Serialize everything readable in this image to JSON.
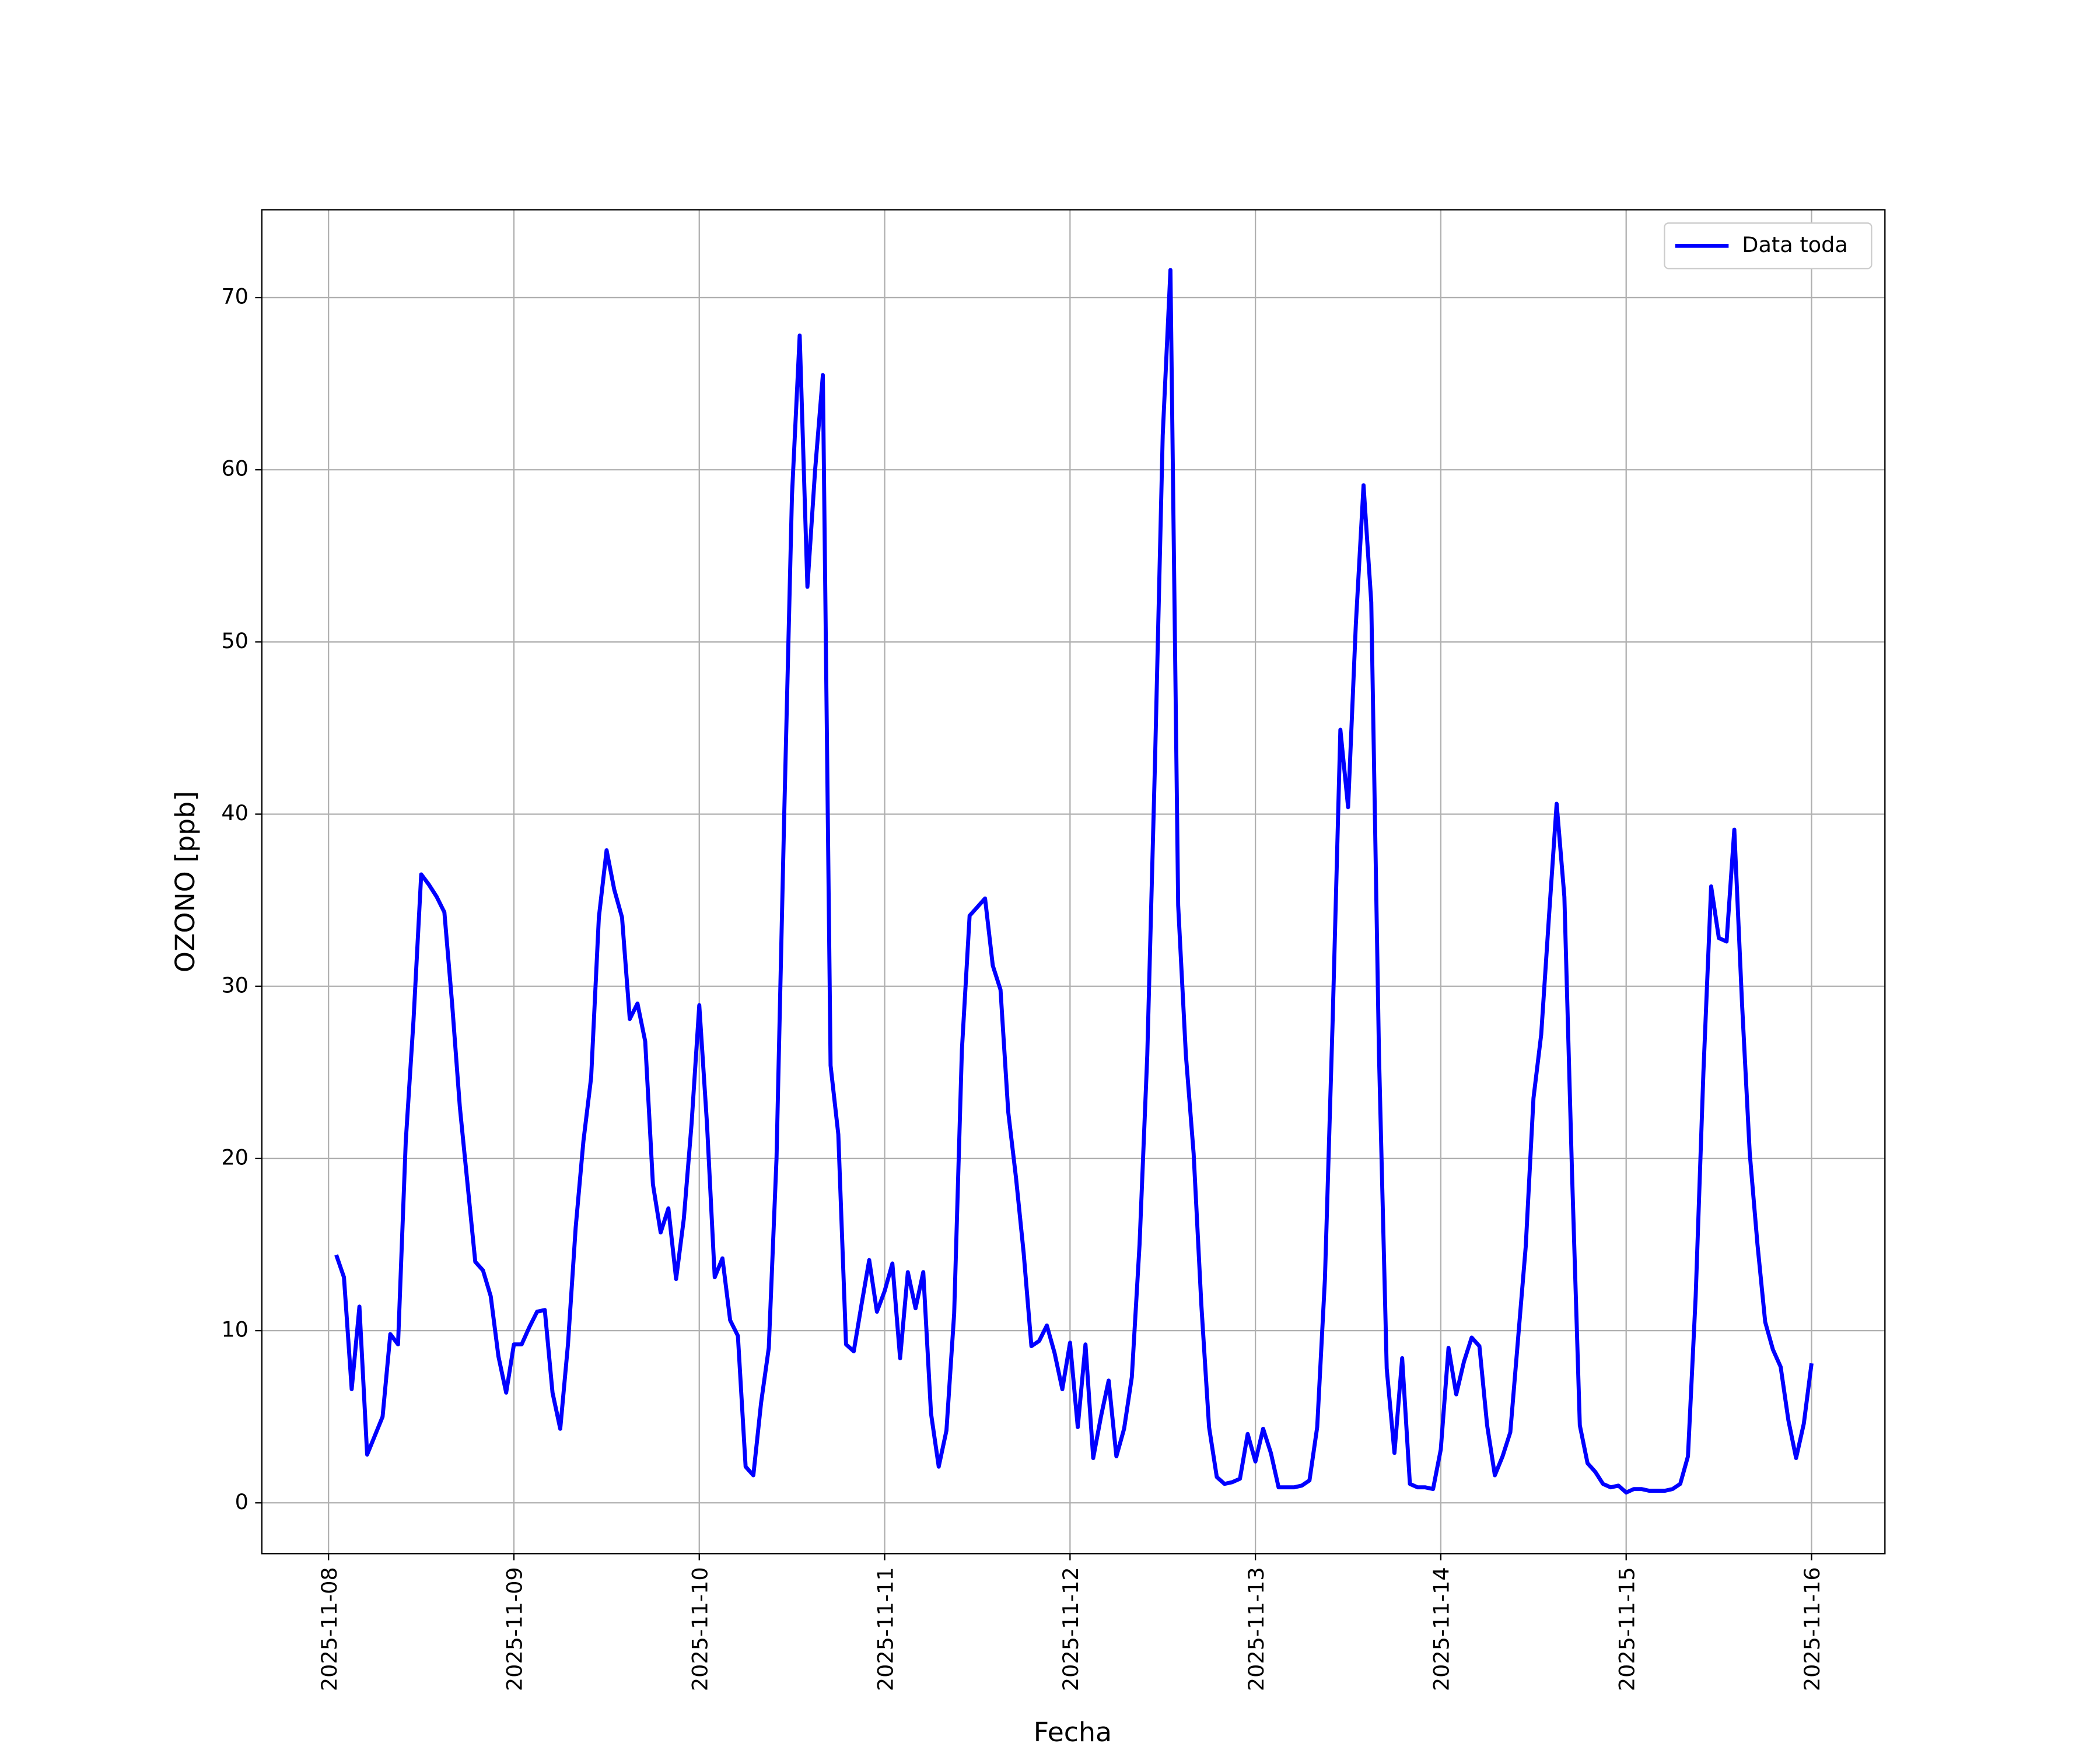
{
  "chart_data": {
    "type": "line",
    "xlabel": "Fecha",
    "ylabel": "OZONO [ppb]",
    "x": [
      "2025-11-08 01:00",
      "2025-11-08 02:00",
      "2025-11-08 03:00",
      "2025-11-08 04:00",
      "2025-11-08 05:00",
      "2025-11-08 06:00",
      "2025-11-08 07:00",
      "2025-11-08 08:00",
      "2025-11-08 09:00",
      "2025-11-08 10:00",
      "2025-11-08 11:00",
      "2025-11-08 12:00",
      "2025-11-08 13:00",
      "2025-11-08 14:00",
      "2025-11-08 15:00",
      "2025-11-08 16:00",
      "2025-11-08 17:00",
      "2025-11-08 18:00",
      "2025-11-08 19:00",
      "2025-11-08 20:00",
      "2025-11-08 21:00",
      "2025-11-08 22:00",
      "2025-11-08 23:00",
      "2025-11-09 00:00",
      "2025-11-09 01:00",
      "2025-11-09 02:00",
      "2025-11-09 03:00",
      "2025-11-09 04:00",
      "2025-11-09 05:00",
      "2025-11-09 06:00",
      "2025-11-09 07:00",
      "2025-11-09 08:00",
      "2025-11-09 09:00",
      "2025-11-09 10:00",
      "2025-11-09 11:00",
      "2025-11-09 12:00",
      "2025-11-09 13:00",
      "2025-11-09 14:00",
      "2025-11-09 15:00",
      "2025-11-09 16:00",
      "2025-11-09 17:00",
      "2025-11-09 18:00",
      "2025-11-09 19:00",
      "2025-11-09 20:00",
      "2025-11-09 21:00",
      "2025-11-09 22:00",
      "2025-11-09 23:00",
      "2025-11-10 00:00",
      "2025-11-10 01:00",
      "2025-11-10 02:00",
      "2025-11-10 03:00",
      "2025-11-10 04:00",
      "2025-11-10 05:00",
      "2025-11-10 06:00",
      "2025-11-10 07:00",
      "2025-11-10 08:00",
      "2025-11-10 09:00",
      "2025-11-10 10:00",
      "2025-11-10 11:00",
      "2025-11-10 12:00",
      "2025-11-10 13:00",
      "2025-11-10 14:00",
      "2025-11-10 15:00",
      "2025-11-10 16:00",
      "2025-11-10 17:00",
      "2025-11-10 18:00",
      "2025-11-10 19:00",
      "2025-11-10 20:00",
      "2025-11-10 21:00",
      "2025-11-10 22:00",
      "2025-11-10 23:00",
      "2025-11-11 00:00",
      "2025-11-11 01:00",
      "2025-11-11 02:00",
      "2025-11-11 03:00",
      "2025-11-11 04:00",
      "2025-11-11 05:00",
      "2025-11-11 06:00",
      "2025-11-11 07:00",
      "2025-11-11 08:00",
      "2025-11-11 09:00",
      "2025-11-11 10:00",
      "2025-11-11 11:00",
      "2025-11-11 12:00",
      "2025-11-11 13:00",
      "2025-11-11 14:00",
      "2025-11-11 15:00",
      "2025-11-11 16:00",
      "2025-11-11 17:00",
      "2025-11-11 18:00",
      "2025-11-11 19:00",
      "2025-11-11 20:00",
      "2025-11-11 21:00",
      "2025-11-11 22:00",
      "2025-11-11 23:00",
      "2025-11-12 00:00",
      "2025-11-12 01:00",
      "2025-11-12 02:00",
      "2025-11-12 03:00",
      "2025-11-12 04:00",
      "2025-11-12 05:00",
      "2025-11-12 06:00",
      "2025-11-12 07:00",
      "2025-11-12 08:00",
      "2025-11-12 09:00",
      "2025-11-12 10:00",
      "2025-11-12 11:00",
      "2025-11-12 12:00",
      "2025-11-12 13:00",
      "2025-11-12 14:00",
      "2025-11-12 15:00",
      "2025-11-12 16:00",
      "2025-11-12 17:00",
      "2025-11-12 18:00",
      "2025-11-12 19:00",
      "2025-11-12 20:00",
      "2025-11-12 21:00",
      "2025-11-12 22:00",
      "2025-11-12 23:00",
      "2025-11-13 00:00",
      "2025-11-13 01:00",
      "2025-11-13 02:00",
      "2025-11-13 03:00",
      "2025-11-13 04:00",
      "2025-11-13 05:00",
      "2025-11-13 06:00",
      "2025-11-13 07:00",
      "2025-11-13 08:00",
      "2025-11-13 09:00",
      "2025-11-13 10:00",
      "2025-11-13 11:00",
      "2025-11-13 12:00",
      "2025-11-13 13:00",
      "2025-11-13 14:00",
      "2025-11-13 15:00",
      "2025-11-13 16:00",
      "2025-11-13 17:00",
      "2025-11-13 18:00",
      "2025-11-13 19:00",
      "2025-11-13 20:00",
      "2025-11-13 21:00",
      "2025-11-13 22:00",
      "2025-11-13 23:00",
      "2025-11-14 00:00",
      "2025-11-14 01:00",
      "2025-11-14 02:00",
      "2025-11-14 03:00",
      "2025-11-14 04:00",
      "2025-11-14 05:00",
      "2025-11-14 06:00",
      "2025-11-14 07:00",
      "2025-11-14 08:00",
      "2025-11-14 09:00",
      "2025-11-14 10:00",
      "2025-11-14 11:00",
      "2025-11-14 12:00",
      "2025-11-14 13:00",
      "2025-11-14 14:00",
      "2025-11-14 15:00",
      "2025-11-14 16:00",
      "2025-11-14 17:00",
      "2025-11-14 18:00",
      "2025-11-14 19:00",
      "2025-11-14 20:00",
      "2025-11-14 21:00",
      "2025-11-14 22:00",
      "2025-11-14 23:00",
      "2025-11-15 00:00",
      "2025-11-15 01:00",
      "2025-11-15 02:00",
      "2025-11-15 03:00",
      "2025-11-15 04:00",
      "2025-11-15 05:00",
      "2025-11-15 06:00",
      "2025-11-15 07:00",
      "2025-11-15 08:00",
      "2025-11-15 09:00",
      "2025-11-15 10:00",
      "2025-11-15 11:00",
      "2025-11-15 12:00",
      "2025-11-15 13:00",
      "2025-11-15 14:00",
      "2025-11-15 15:00",
      "2025-11-15 16:00",
      "2025-11-15 17:00",
      "2025-11-15 18:00",
      "2025-11-15 19:00",
      "2025-11-15 20:00",
      "2025-11-15 21:00",
      "2025-11-15 22:00",
      "2025-11-15 23:00",
      "2025-11-16 00:00"
    ],
    "series": [
      {
        "name": "Data toda",
        "color": "#0000ff",
        "values": [
          14.4,
          13.1,
          6.6,
          11.4,
          2.8,
          3.9,
          5.0,
          9.8,
          9.2,
          21,
          28,
          36.5,
          35.9,
          35.2,
          34.3,
          29,
          23,
          18.5,
          14,
          13.5,
          12,
          8.5,
          6.4,
          9.2,
          9.2,
          10.2,
          11.1,
          11.2,
          6.4,
          4.3,
          9.2,
          16,
          21,
          24.7,
          34,
          37.9,
          35.6,
          34,
          28.1,
          29,
          26.8,
          18.5,
          15.7,
          17.1,
          13,
          16.5,
          22,
          28.9,
          22,
          13.1,
          14.2,
          10.6,
          9.7,
          2.1,
          1.6,
          5.8,
          9,
          20,
          40,
          58.5,
          67.8,
          53.2,
          60,
          65.5,
          25.4,
          21.4,
          9.2,
          8.8,
          11.5,
          14.1,
          11.1,
          12.3,
          13.9,
          8.4,
          13.4,
          11.3,
          13.4,
          5.2,
          2.1,
          4.2,
          11,
          26.3,
          34.1,
          34.6,
          35.1,
          31.2,
          29.8,
          22.7,
          18.9,
          14.5,
          9.1,
          9.4,
          10.3,
          8.7,
          6.6,
          9.3,
          4.4,
          9.2,
          2.6,
          5,
          7.1,
          2.7,
          4.3,
          7.3,
          15,
          26,
          43,
          62,
          71.6,
          34.7,
          26,
          20.3,
          11.5,
          4.4,
          1.5,
          1.1,
          1.2,
          1.4,
          4,
          2.4,
          4.3,
          2.9,
          0.9,
          0.9,
          0.9,
          1.0,
          1.3,
          4.4,
          13,
          28,
          44.9,
          40.4,
          51,
          59.1,
          52.3,
          26,
          7.8,
          2.9,
          8.4,
          1.1,
          0.9,
          0.9,
          0.8,
          3.1,
          9,
          6.3,
          8.2,
          9.6,
          9.1,
          4.5,
          1.6,
          2.7,
          4.1,
          9.5,
          14.9,
          23.5,
          27.2,
          34,
          40.6,
          35.2,
          19,
          4.5,
          2.3,
          1.8,
          1.1,
          0.9,
          1.0,
          0.6,
          0.8,
          0.8,
          0.7,
          0.7,
          0.7,
          0.8,
          1.1,
          2.7,
          12,
          25,
          35.8,
          32.8,
          32.6,
          39.1,
          29,
          20.3,
          15,
          10.5,
          8.9,
          7.9,
          4.8,
          2.6,
          4.6,
          8.1
        ]
      }
    ],
    "xlim": [
      "2025-11-07 15:22",
      "2025-11-16 09:30"
    ],
    "xticks": [
      "2025-11-08",
      "2025-11-09",
      "2025-11-10",
      "2025-11-11",
      "2025-11-12",
      "2025-11-13",
      "2025-11-14",
      "2025-11-15",
      "2025-11-16"
    ],
    "ylim": [
      -2.95,
      75.1
    ],
    "yticks": [
      0,
      10,
      20,
      30,
      40,
      50,
      60,
      70
    ],
    "grid": true,
    "legend": "upper right"
  }
}
